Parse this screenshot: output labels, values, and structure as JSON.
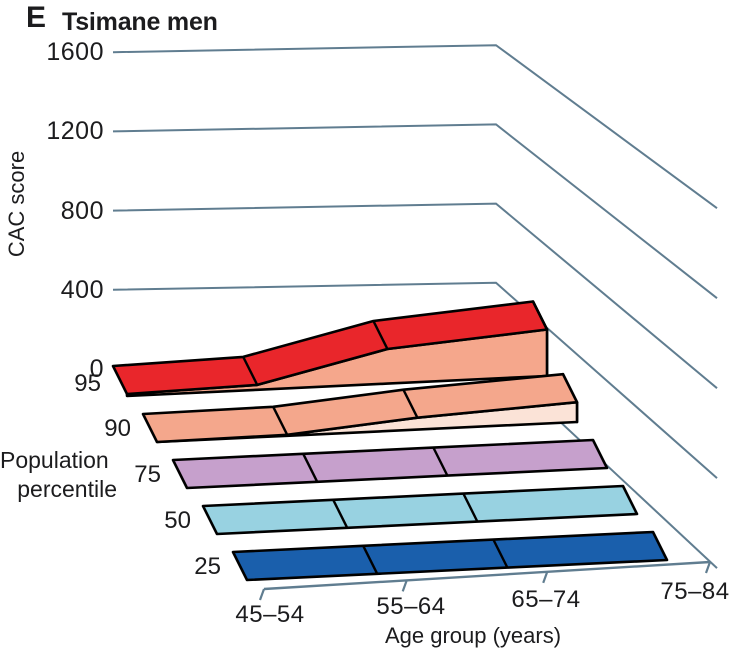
{
  "panel": {
    "letter": "E",
    "title": "Tsimane men"
  },
  "colors": {
    "background": "#ffffff",
    "text": "#1c1c1e",
    "grid": "#607d90",
    "outline": "#000000"
  },
  "chart_data": {
    "type": "area",
    "variant": "3d-ribbon",
    "title": "Tsimane men",
    "panel": "E",
    "xlabel": "Age group (years)",
    "ylabel": "CAC score",
    "zlabel": "Population percentile",
    "zlabel_lines": [
      "Population",
      "percentile"
    ],
    "categories": [
      "45–54",
      "55–64",
      "65–74",
      "75–84"
    ],
    "y_ticks": [
      0,
      400,
      800,
      1200,
      1600
    ],
    "ylim": [
      0,
      1600
    ],
    "grid": true,
    "legend_position": "left",
    "series": [
      {
        "name": "95",
        "values": [
          10,
          25,
          175,
          235
        ],
        "top_color": "#e9262b",
        "face_color": "#f5a78c"
      },
      {
        "name": "90",
        "values": [
          0,
          5,
          60,
          100
        ],
        "top_color": "#f4a78c",
        "face_color": "#fbe3d7"
      },
      {
        "name": "75",
        "values": [
          0,
          0,
          0,
          0
        ],
        "top_color": "#c6a0cc",
        "face_color": "#eadaee"
      },
      {
        "name": "50",
        "values": [
          0,
          0,
          0,
          0
        ],
        "top_color": "#98d2e1",
        "face_color": "#d9eef5"
      },
      {
        "name": "25",
        "values": [
          0,
          0,
          0,
          0
        ],
        "top_color": "#1a5fac",
        "face_color": "#a9c7e3"
      }
    ]
  }
}
